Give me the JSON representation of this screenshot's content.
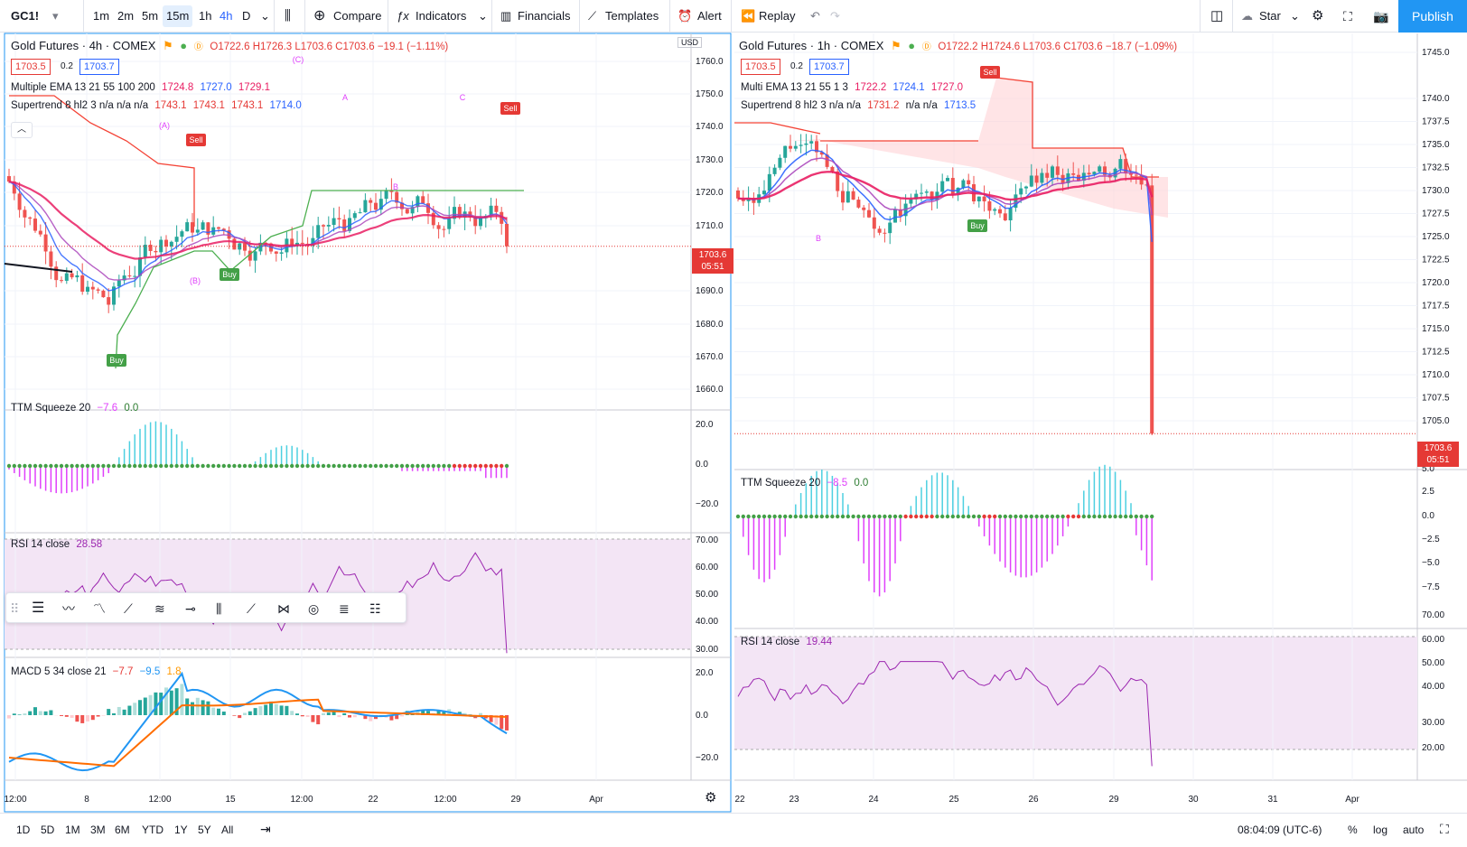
{
  "toolbar": {
    "symbol": "GC1!",
    "intervals": [
      "1m",
      "2m",
      "5m",
      "15m",
      "1h",
      "4h",
      "D"
    ],
    "compare_label": "Compare",
    "indicators_label": "Indicators",
    "financials_label": "Financials",
    "templates_label": "Templates",
    "alert_label": "Alert",
    "replay_label": "Replay",
    "star_label": "Star",
    "publish_label": "Publish"
  },
  "left_chart": {
    "title": "Gold Futures · 4h · COMEX",
    "ohlc": "O1722.6 H1726.3 L1703.6 C1703.6 −19.1 (−1.11%)",
    "bid": "1703.5",
    "spread": "0.2",
    "ask": "1703.7",
    "ema_legend": "Multiple EMA 13 21 55 100 200",
    "ema_values": [
      "1724.8",
      "1727.0",
      "1729.1"
    ],
    "supertrend_legend": "Supertrend 8 hl2 3  n/a n/a n/a",
    "supertrend_values": [
      "1743.1",
      "1743.1",
      "1743.1",
      "1714.0"
    ],
    "currency": "USD",
    "price_ticks": [
      "1760.0",
      "1750.0",
      "1740.0",
      "1730.0",
      "1720.0",
      "1710.0",
      "1690.0",
      "1680.0",
      "1670.0",
      "1660.0"
    ],
    "last_price": "1703.6",
    "countdown": "05:51",
    "ttm_legend": "TTM Squeeze 20",
    "ttm_values": [
      "−7.6",
      "0.0"
    ],
    "ttm_ticks": [
      "20.0",
      "0.0",
      "−20.0"
    ],
    "rsi_legend": "RSI 14 close",
    "rsi_value": "28.58",
    "rsi_ticks": [
      "70.00",
      "60.00",
      "50.00",
      "40.00",
      "30.00"
    ],
    "macd_legend": "MACD 5 34 close 21",
    "macd_values": [
      "−7.7",
      "−9.5",
      "1.8"
    ],
    "macd_ticks": [
      "20.0",
      "0.0",
      "−20.0"
    ],
    "time_ticks": [
      "12:00",
      "8",
      "12:00",
      "15",
      "12:00",
      "22",
      "12:00",
      "29",
      "Apr"
    ],
    "labels": {
      "buy": "Buy",
      "sell": "Sell",
      "wave_a": "A",
      "wave_b": "B",
      "wave_c": "C",
      "wave_a_paren": "(A)",
      "wave_b_paren": "(B)",
      "wave_c_paren": "(C)"
    }
  },
  "right_chart": {
    "title": "Gold Futures · 1h · COMEX",
    "ohlc": "O1722.2 H1724.6 L1703.6 C1703.6 −18.7 (−1.09%)",
    "bid": "1703.5",
    "spread": "0.2",
    "ask": "1703.7",
    "ema_legend": "Multi EMA 13 21 55 1 3",
    "ema_values": [
      "1722.2",
      "1724.1",
      "1727.0"
    ],
    "supertrend_legend": "Supertrend 8 hl2 3  n/a n/a",
    "supertrend_values": [
      "1731.2",
      "n/a n/a",
      "1713.5"
    ],
    "price_ticks": [
      "1745.0",
      "1740.0",
      "1737.5",
      "1735.0",
      "1732.5",
      "1730.0",
      "1727.5",
      "1725.0",
      "1722.5",
      "1720.0",
      "1717.5",
      "1715.0",
      "1712.5",
      "1710.0",
      "1707.5",
      "1705.0"
    ],
    "last_price": "1703.6",
    "countdown": "05:51",
    "ttm_legend": "TTM Squeeze 20",
    "ttm_values": [
      "−8.5",
      "0.0"
    ],
    "ttm_ticks": [
      "5.0",
      "2.5",
      "0.0",
      "−2.5",
      "−5.0",
      "−7.5"
    ],
    "rsi_legend": "RSI 14 close",
    "rsi_value": "19.44",
    "rsi_ticks": [
      "70.00",
      "60.00",
      "50.00",
      "40.00",
      "30.00",
      "20.00"
    ],
    "time_ticks": [
      "22",
      "23",
      "24",
      "25",
      "26",
      "29",
      "30",
      "31",
      "Apr"
    ]
  },
  "bottom": {
    "ranges": [
      "1D",
      "5D",
      "1M",
      "3M",
      "6M",
      "YTD",
      "1Y",
      "5Y",
      "All"
    ],
    "clock": "08:04:09 (UTC-6)",
    "percent": "%",
    "log": "log",
    "auto": "auto"
  },
  "colors": {
    "up": "#26a69a",
    "down": "#ef5350",
    "accent": "#2196f3",
    "ema_fast": "#2962ff",
    "ema_mid": "#ab47bc",
    "ema_slow": "#e91e63",
    "supertrend_up": "#4caf50",
    "supertrend_down": "#f44336",
    "rsi": "#9c27b0"
  }
}
